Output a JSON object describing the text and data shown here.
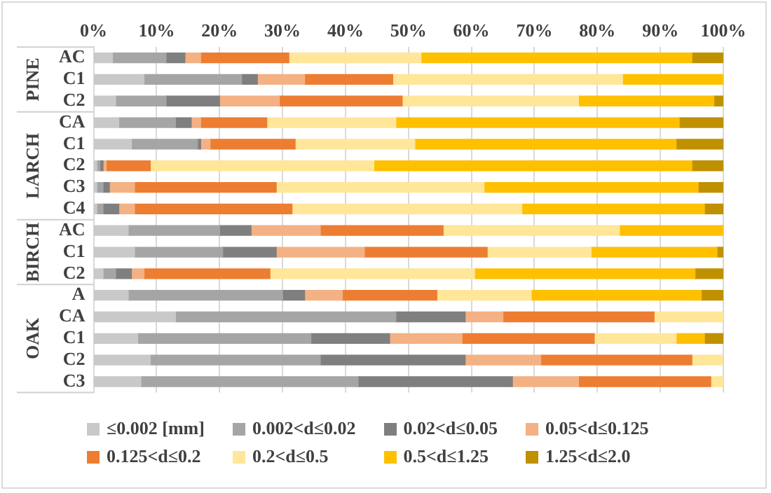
{
  "chart_data": {
    "type": "bar",
    "orientation": "horizontal",
    "stacked": true,
    "categories": [
      "AC",
      "C1",
      "C2",
      "CA",
      "C1",
      "C2",
      "C3",
      "C4",
      "AC",
      "C1",
      "C2",
      "A",
      "CA",
      "C1",
      "C2",
      "C3"
    ],
    "series": [
      {
        "name": "≤0.002 [mm]",
        "color": "#c9c9c9",
        "values": [
          3,
          8,
          3.5,
          4,
          6,
          0.5,
          0.5,
          0.5,
          5.5,
          6.5,
          1.5,
          5.5,
          13,
          7,
          9,
          7.5
        ]
      },
      {
        "name": "0.002<d≤0.02",
        "color": "#a5a5a5",
        "values": [
          8.5,
          15.5,
          8,
          9,
          10.5,
          0.5,
          1,
          1,
          14.5,
          14,
          2,
          24.5,
          35,
          27.5,
          27,
          34.5
        ]
      },
      {
        "name": "0.02<d≤0.05",
        "color": "#7f7f7f",
        "values": [
          3,
          2.5,
          8.5,
          2.5,
          0.5,
          0.5,
          1,
          2.5,
          5,
          8.5,
          2.5,
          3.5,
          11,
          12.5,
          23,
          24.5
        ]
      },
      {
        "name": "0.05<d≤0.125",
        "color": "#f4b183",
        "values": [
          2.5,
          7.5,
          9.5,
          1.5,
          1.5,
          0.5,
          4,
          2.5,
          11,
          14,
          2,
          6,
          6,
          11.5,
          12,
          10.5
        ]
      },
      {
        "name": "0.125<d≤0.2",
        "color": "#ed7d31",
        "values": [
          14,
          14,
          19.5,
          10.5,
          13.5,
          7,
          22.5,
          25,
          19.5,
          19.5,
          20,
          15,
          24,
          21,
          24,
          21
        ]
      },
      {
        "name": "0.2<d≤0.5",
        "color": "#ffe699",
        "values": [
          21,
          36.5,
          28,
          20.5,
          19,
          35.5,
          33,
          36.5,
          28,
          16.5,
          32.5,
          15,
          11,
          13,
          5,
          2
        ]
      },
      {
        "name": "0.5<d≤1.25",
        "color": "#ffc000",
        "values": [
          43,
          16,
          21.5,
          45,
          41.5,
          50.5,
          34,
          29,
          16.5,
          20,
          35,
          27,
          0,
          4.5,
          0,
          0
        ]
      },
      {
        "name": "1.25<d≤2.0",
        "color": "#bf9000",
        "values": [
          5,
          0,
          1.5,
          7,
          7.5,
          5,
          4,
          3,
          0,
          1,
          4.5,
          3.5,
          0,
          3,
          0,
          0
        ]
      }
    ],
    "xlim": [
      0,
      100
    ],
    "xticks": [
      {
        "value": 0,
        "label": "0%"
      },
      {
        "value": 10,
        "label": "10%"
      },
      {
        "value": 20,
        "label": "20%"
      },
      {
        "value": 30,
        "label": "30%"
      },
      {
        "value": 40,
        "label": "40%"
      },
      {
        "value": 50,
        "label": "50%"
      },
      {
        "value": 60,
        "label": "60%"
      },
      {
        "value": 70,
        "label": "70%"
      },
      {
        "value": 80,
        "label": "80%"
      },
      {
        "value": 90,
        "label": "90%"
      },
      {
        "value": 100,
        "label": "100%"
      }
    ],
    "grid": "x",
    "legend": "bottom",
    "annotations": [
      "PINE",
      "LARCH",
      "BIRCH",
      "OAK"
    ]
  }
}
